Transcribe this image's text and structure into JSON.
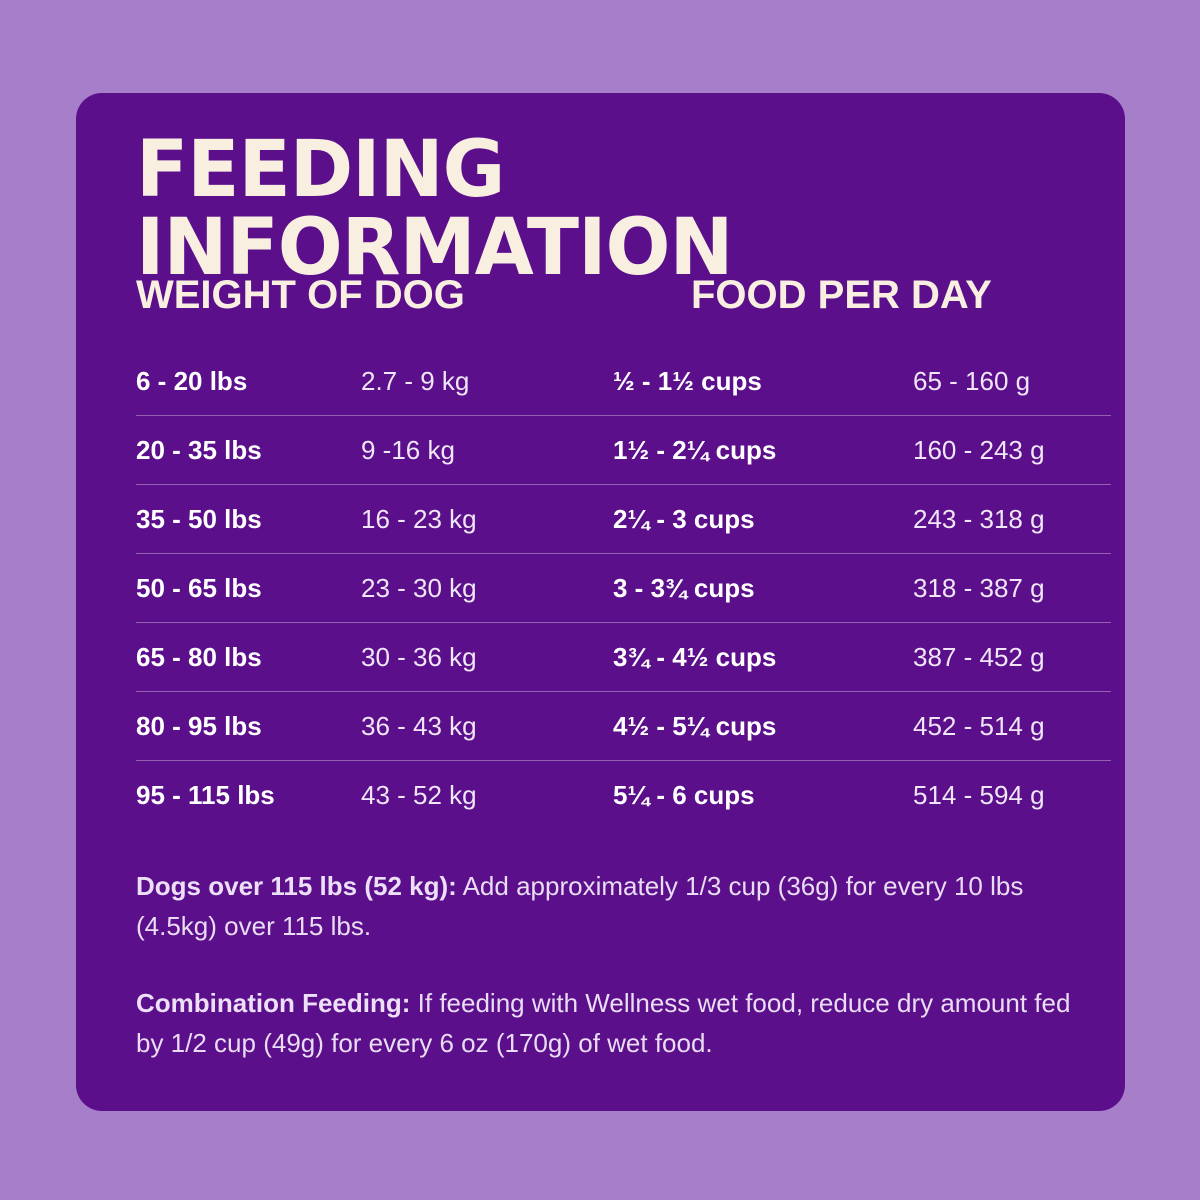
{
  "title": "FEEDING INFORMATION",
  "headers": {
    "weight": "WEIGHT OF DOG",
    "food": "FOOD PER DAY"
  },
  "rows": [
    {
      "lbs": "6 - 20 lbs",
      "kg": "2.7 - 9 kg",
      "cups": "½ - 1½ cups",
      "grams": "65 - 160 g"
    },
    {
      "lbs": "20 - 35 lbs",
      "kg": "9 -16 kg",
      "cups": "1½ - 2¼ cups",
      "grams": "160 - 243 g"
    },
    {
      "lbs": "35 - 50 lbs",
      "kg": "16 - 23 kg",
      "cups": "2¼ - 3 cups",
      "grams": "243 - 318 g"
    },
    {
      "lbs": "50 - 65 lbs",
      "kg": "23 - 30 kg",
      "cups": "3 - 3¾ cups",
      "grams": "318 - 387 g"
    },
    {
      "lbs": "65 - 80 lbs",
      "kg": "30 - 36 kg",
      "cups": "3¾ - 4½ cups",
      "grams": "387 - 452 g"
    },
    {
      "lbs": "80 - 95 lbs",
      "kg": "36 - 43 kg",
      "cups": "4½ - 5¼ cups",
      "grams": "452 - 514 g"
    },
    {
      "lbs": "95 - 115 lbs",
      "kg": "43 - 52 kg",
      "cups": "5¼ - 6 cups",
      "grams": "514 - 594 g"
    }
  ],
  "notes": {
    "over_label": "Dogs over 115 lbs (52 kg):",
    "over_text": " Add approximately 1/3 cup (36g) for every 10 lbs (4.5kg) over 115 lbs.",
    "combo_label": "Combination Feeding:",
    "combo_text": " If feeding with Wellness wet food, reduce dry amount fed by 1/2 cup (49g) for every 6 oz (170g) of wet food."
  },
  "colors": {
    "page_background": "#a67ec9",
    "card_background": "#5b0f8b",
    "title_text": "#f8efe0"
  }
}
